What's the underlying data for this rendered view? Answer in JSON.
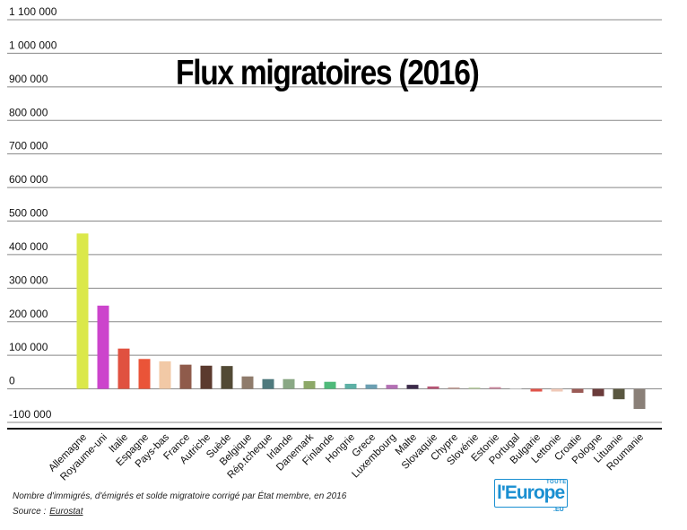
{
  "chart_data": {
    "type": "bar",
    "title": "Flux migratoires (2016)",
    "caption": "Nombre d'immigrés, d'émigrés et solde migratoire corrigé par État membre, en 2016",
    "source_label": "Source :",
    "source_name": "Eurostat",
    "categories": [
      "Allemagne",
      "Royaume-uni",
      "Italie",
      "Espagne",
      "Pays-bas",
      "France",
      "Autriche",
      "Suède",
      "Belgique",
      "Rép.tcheque",
      "Irlande",
      "Danemark",
      "Finlande",
      "Hongrie",
      "Grece",
      "Luxembourg",
      "Malte",
      "Slovaquie",
      "Chypre",
      "Slovénie",
      "Estonie",
      "Portugal",
      "Bulgarie",
      "Lettonie",
      "Croatie",
      "Pologne",
      "Lituanie",
      "Roumanie"
    ],
    "values": [
      463000,
      248000,
      120000,
      89000,
      82000,
      72000,
      69000,
      68000,
      37000,
      29000,
      29000,
      23000,
      21000,
      15000,
      13000,
      12000,
      12000,
      7000,
      4000,
      4000,
      5000,
      0,
      -8000,
      -8000,
      -12000,
      -22000,
      -31000,
      -60000
    ],
    "colors": [
      "#dbe84a",
      "#cc44cc",
      "#e05140",
      "#ea5438",
      "#f2c9a6",
      "#8f5b4b",
      "#5b3a2e",
      "#524a35",
      "#8f7b6b",
      "#4f7a7e",
      "#8aa885",
      "#8da868",
      "#4fba7a",
      "#5db0a5",
      "#6b9fb2",
      "#b370b4",
      "#3c2a4a",
      "#b85575",
      "#c4a098",
      "#bfd2a8",
      "#cc8aa0",
      "#eeeeee",
      "#e05348",
      "#f0c9b8",
      "#9a5a55",
      "#6b3c3b",
      "#5a5740",
      "#8a8078"
    ],
    "y_ticks": [
      1100000,
      1000000,
      900000,
      800000,
      700000,
      600000,
      500000,
      400000,
      300000,
      200000,
      100000,
      0,
      -100000
    ],
    "y_tick_labels": [
      "1 100 000",
      "1 000 000",
      "900 000",
      "800 000",
      "700 000",
      "600 000",
      "500 000",
      "400 000",
      "300 000",
      "200 000",
      "100 000",
      "0",
      "-100 000"
    ],
    "ylim": [
      -100000,
      1100000
    ],
    "grid": true,
    "legend": "none"
  },
  "logo": {
    "main": "l'Europe",
    "top": "TOUTE",
    "suffix": ".EU"
  }
}
